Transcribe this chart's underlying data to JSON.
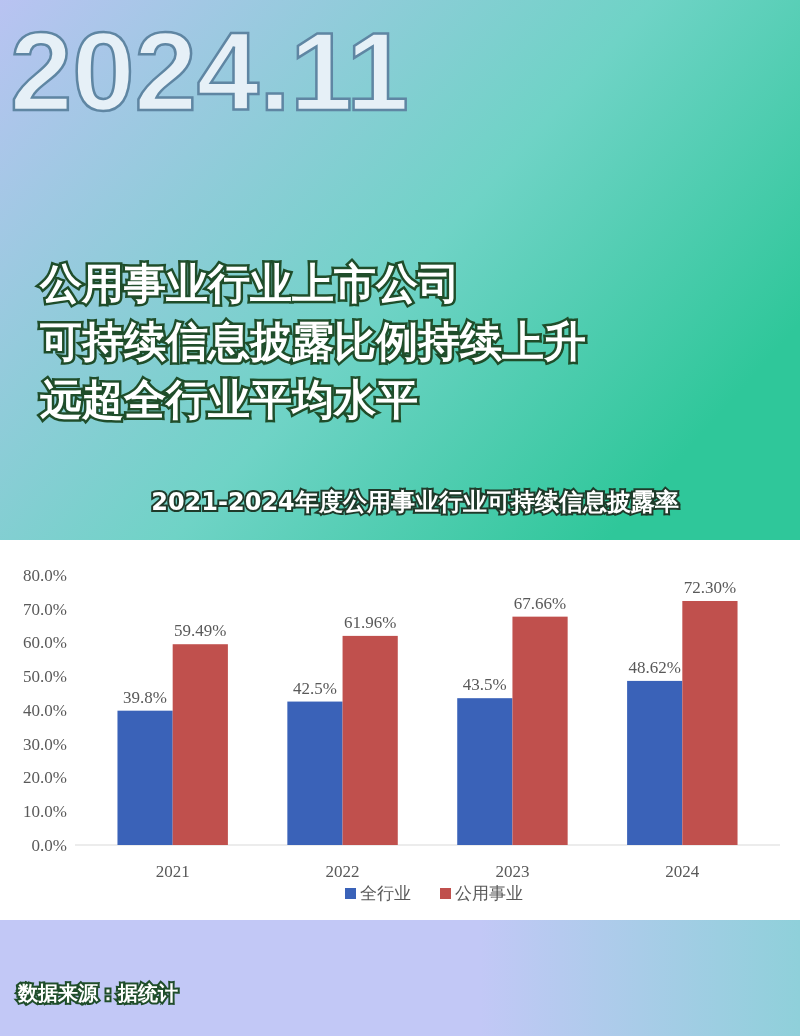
{
  "chart_data": {
    "type": "bar",
    "title": "公用事业行业上市公司可持续信息披露比例持续上升远超全行业平均水平",
    "subtitle": "2021-2024年度公用事业行业可持续信息披露率",
    "annotations": [
      "2024.11",
      "数据来源：据统计"
    ],
    "categories": [
      "2021",
      "2022",
      "2023",
      "2024"
    ],
    "series": [
      {
        "name": "全行业",
        "color": "#3a62b8",
        "values": [
          39.8,
          42.5,
          43.5,
          48.62
        ],
        "value_labels": [
          "39.8%",
          "42.5%",
          "43.5%",
          "48.62%"
        ]
      },
      {
        "name": "公用事业",
        "color": "#c0504d",
        "values": [
          59.49,
          61.96,
          67.66,
          72.3
        ],
        "value_labels": [
          "59.49%",
          "61.96%",
          "67.66%",
          "72.30%"
        ]
      }
    ],
    "ylim": [
      0,
      80
    ],
    "yticks": [
      {
        "value": 0,
        "label": "0.0%"
      },
      {
        "value": 10,
        "label": "10.0%"
      },
      {
        "value": 20,
        "label": "20.0%"
      },
      {
        "value": 30,
        "label": "30.0%"
      },
      {
        "value": 40,
        "label": "40.0%"
      },
      {
        "value": 50,
        "label": "50.0%"
      },
      {
        "value": 60,
        "label": "60.0%"
      },
      {
        "value": 70,
        "label": "70.0%"
      },
      {
        "value": 80,
        "label": "80.0%"
      }
    ],
    "grid": false,
    "legend": "bottom"
  }
}
